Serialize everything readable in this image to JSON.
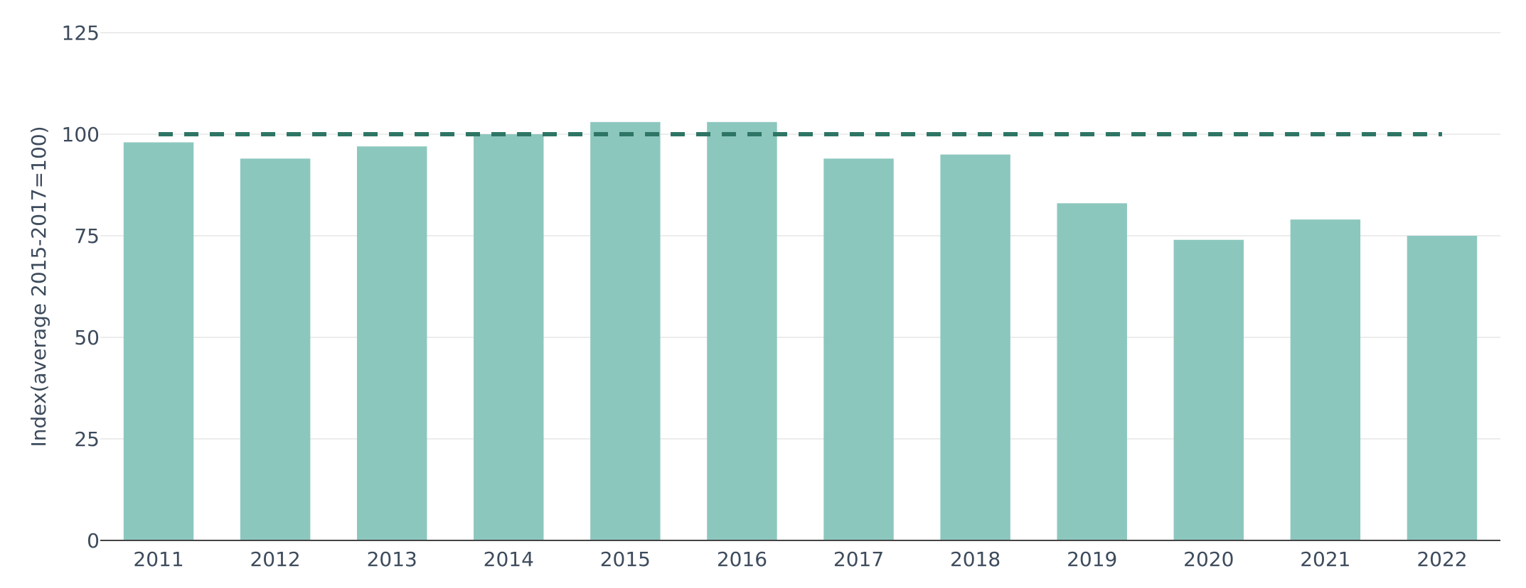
{
  "chart_data": {
    "type": "bar",
    "title": "",
    "xlabel": "",
    "ylabel": "Index(average 2015-2017=100)",
    "categories": [
      "2011",
      "2012",
      "2013",
      "2014",
      "2015",
      "2016",
      "2017",
      "2018",
      "2019",
      "2020",
      "2021",
      "2022"
    ],
    "values": [
      98,
      94,
      97,
      100,
      103,
      103,
      94,
      95,
      83,
      74,
      79,
      75
    ],
    "ylim": [
      0,
      125
    ],
    "yticks": [
      0,
      25,
      50,
      75,
      100,
      125
    ],
    "reference_line": {
      "value": 100,
      "style": "dashed"
    },
    "grid": true,
    "legend": "none",
    "colors": {
      "bar": "#8cc7be",
      "reference_line": "#2e7565",
      "grid": "#e6e6e6",
      "axis": "#444444",
      "text": "#3d4b5c"
    }
  }
}
